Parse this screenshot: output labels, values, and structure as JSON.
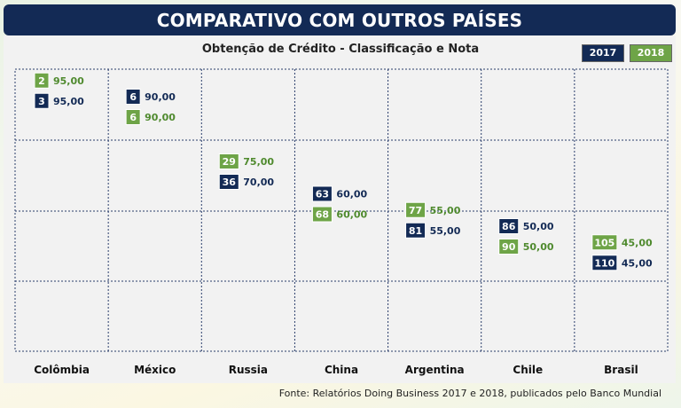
{
  "header": {
    "title": "COMPARATIVO COM OUTROS PAÍSES"
  },
  "footer": {
    "source": "Fonte: Relatórios Doing Business 2017 e 2018, publicados pelo Banco Mundial"
  },
  "colors": {
    "series_2017": "#132a55",
    "series_2018": "#6ea447",
    "score_2017_text": "#132a55",
    "score_2018_text": "#4f8a2e",
    "grid": "#2a3d6b"
  },
  "chart_data": {
    "type": "scatter",
    "title": "Obtenção de Crédito - Classificação e Nota",
    "categories": [
      "Colômbia",
      "México",
      "Russia",
      "China",
      "Argentina",
      "Chile",
      "Brasil"
    ],
    "ylim": [
      40,
      100
    ],
    "grid": true,
    "legend_placement": "top-right",
    "series": [
      {
        "name": "2017",
        "ranks": [
          "3",
          "6",
          "36",
          "63",
          "81",
          "86",
          "110"
        ],
        "values": [
          95,
          90,
          70,
          60,
          55,
          50,
          45
        ],
        "value_labels": [
          "95,00",
          "90,00",
          "70,00",
          "60,00",
          "55,00",
          "50,00",
          "45,00"
        ]
      },
      {
        "name": "2018",
        "ranks": [
          "2",
          "6",
          "29",
          "68",
          "77",
          "90",
          "105"
        ],
        "values": [
          95,
          90,
          75,
          60,
          55,
          50,
          45
        ],
        "value_labels": [
          "95,00",
          "90,00",
          "75,00",
          "60,00",
          "55,00",
          "50,00",
          "45,00"
        ]
      }
    ]
  }
}
